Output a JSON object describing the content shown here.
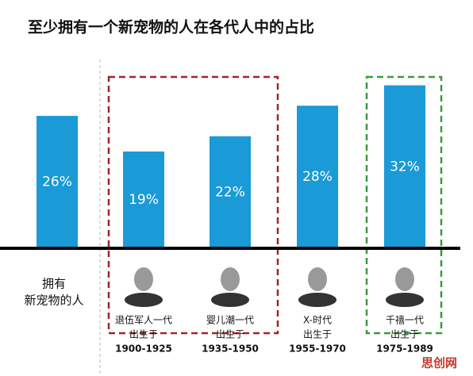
{
  "chart_data": {
    "type": "bar",
    "title": "至少拥有一个新宠物的人在各代人中的占比",
    "categories": [
      null,
      "退伍军人一代",
      "婴儿潮一代",
      "X-时代",
      "千禧一代"
    ],
    "values": [
      26,
      19,
      22,
      28,
      32
    ],
    "value_labels": [
      "26%",
      "19%",
      "22%",
      "28%",
      "32%"
    ],
    "color": "#1a9ad6",
    "row_label": [
      "拥有",
      "新宠物的人"
    ],
    "birth_label": "出生于",
    "birth_years": [
      null,
      "1900-1925",
      "1935-1950",
      "1955-1970",
      "1975-1989"
    ],
    "watermark": "思创网"
  }
}
